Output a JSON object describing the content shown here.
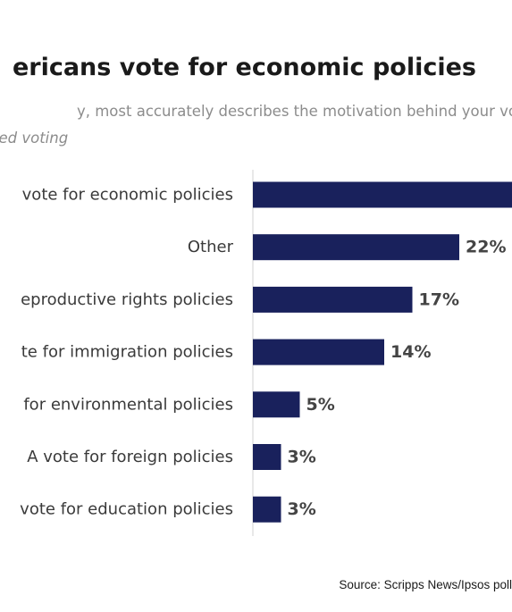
{
  "header": {
    "title": "ericans vote for economic policies",
    "subtitle": "y, most accurately describes the motivation behind your vo",
    "note": "ted voting"
  },
  "footer": {
    "source": "Source: Scripps News/Ipsos poll"
  },
  "colors": {
    "bar": "#19215c",
    "axis": "#d0d0d0"
  },
  "chart_data": {
    "type": "bar",
    "orientation": "horizontal",
    "categories": [
      "vote for economic policies",
      "Other",
      "eproductive rights policies",
      "te for immigration policies",
      "for environmental policies",
      "A vote for foreign policies",
      "vote for education policies"
    ],
    "values": [
      36,
      22,
      17,
      14,
      5,
      3,
      3
    ],
    "value_labels": [
      "",
      "22%",
      "17%",
      "14%",
      "5%",
      "3%",
      "3%"
    ],
    "xlim": [
      0,
      100
    ],
    "grid": false
  }
}
